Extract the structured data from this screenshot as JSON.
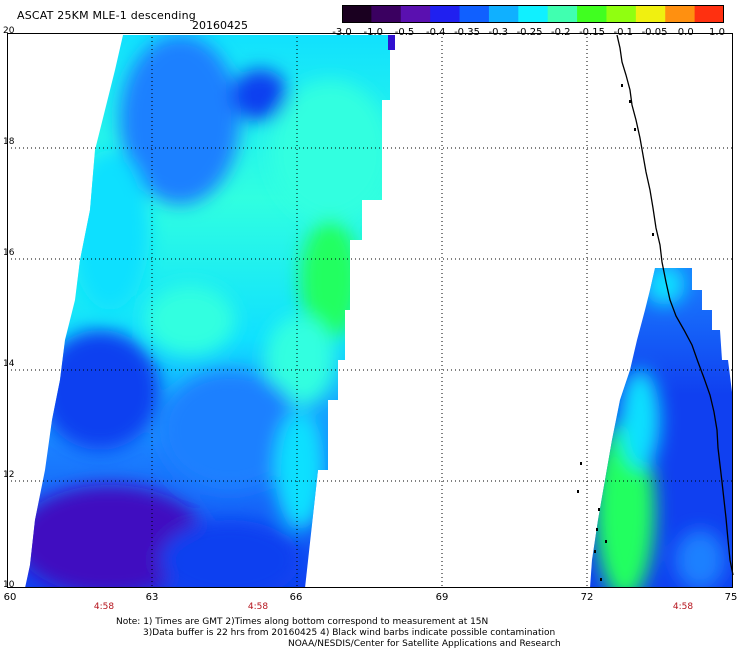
{
  "title": "ASCAT 25KM MLE-1 descending",
  "date": "20160425",
  "colorbar": {
    "colors": [
      "#1a0020",
      "#3a0060",
      "#5a10b0",
      "#2020f0",
      "#1060ff",
      "#10b0ff",
      "#10f0ff",
      "#40ffb0",
      "#40ff20",
      "#90ff10",
      "#f0f010",
      "#ff9010",
      "#ff3010"
    ],
    "labels": [
      "-3.0",
      "-1.0",
      "-0.5",
      "-0.4",
      "-0.35",
      "-0.3",
      "-0.25",
      "-0.2",
      "-0.15",
      "-0.1",
      "-0.05",
      "0.0",
      "1.0"
    ]
  },
  "axes": {
    "lat_labels": [
      "20",
      "18",
      "16",
      "14",
      "12",
      "10"
    ],
    "lon_labels": [
      "60",
      "63",
      "66",
      "69",
      "72",
      "75"
    ],
    "lat_range": [
      10,
      20
    ],
    "lon_range": [
      60,
      75
    ]
  },
  "time_labels": [
    "4:58",
    "4:58",
    "4:58"
  ],
  "notes": [
    "Note: 1) Times are GMT 2)Times along bottom correspond to measurement at 15N",
    "3)Data buffer is 22 hrs from 20160425 4) Black wind barbs indicate possible contamination",
    "NOAA/NESDIS/Center for Satellite Applications and Research"
  ],
  "swath_colors": {
    "deep": "#4010c0",
    "blue": "#1040f0",
    "mid": "#1a80ff",
    "cyan": "#10e0ff",
    "aqua": "#30ffe0",
    "green": "#20ff60"
  }
}
